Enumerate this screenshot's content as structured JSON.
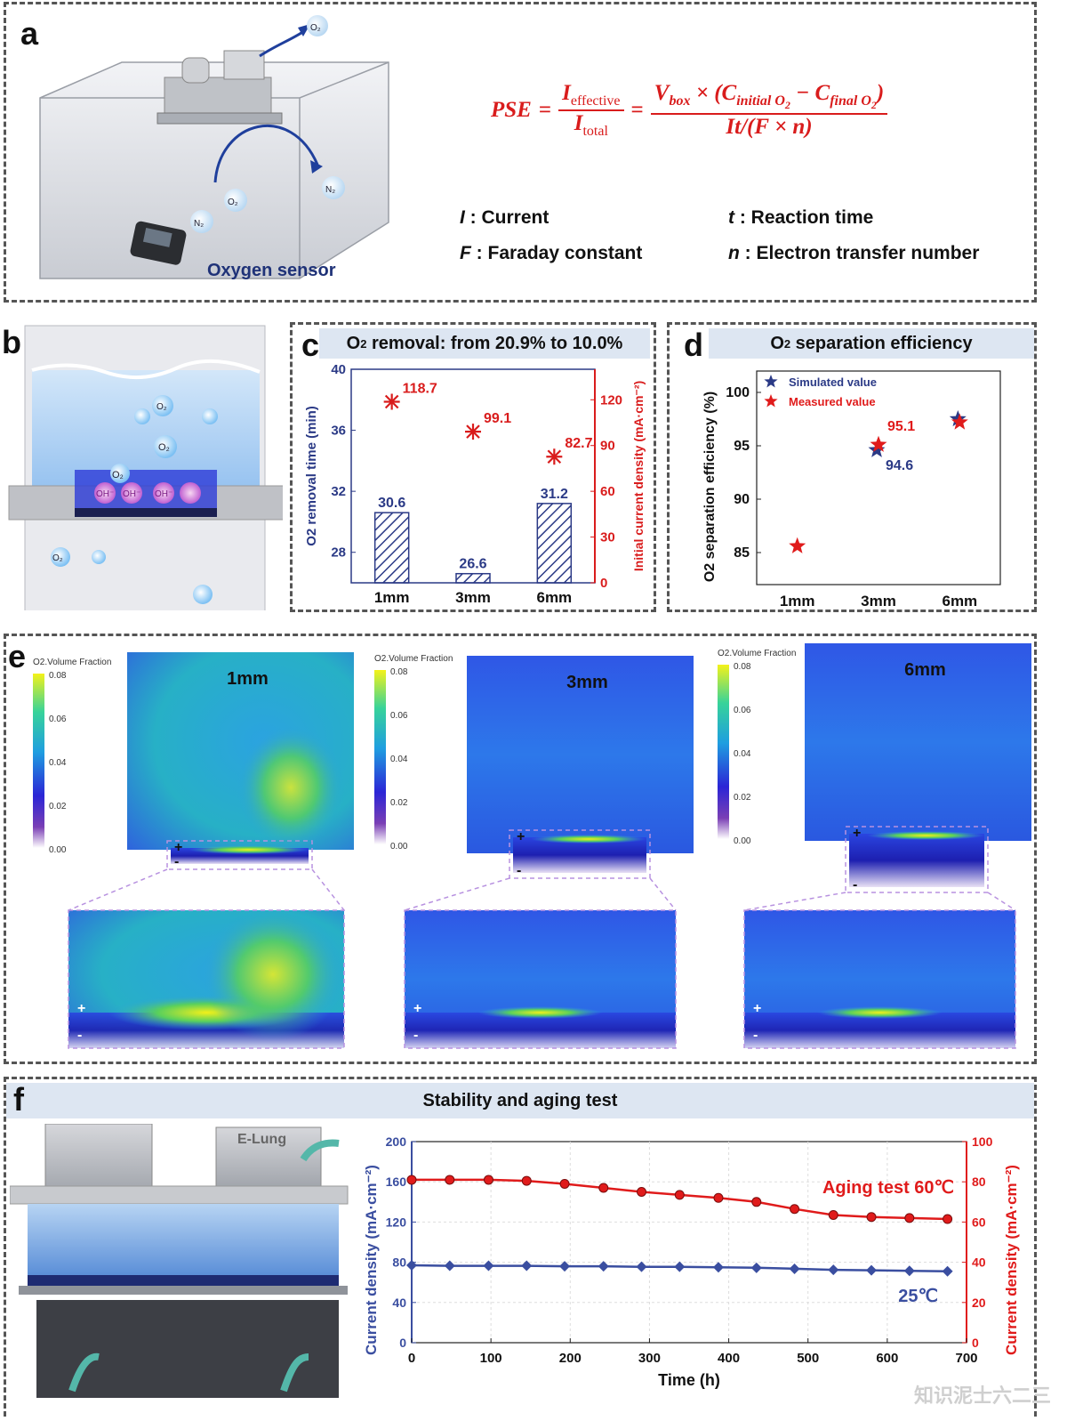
{
  "panels": {
    "a": "a",
    "b": "b",
    "c": "c",
    "d": "d",
    "e": "e",
    "f": "f"
  },
  "panel_a": {
    "sensor_label": "Oxygen sensor",
    "bubble_o2": "O₂",
    "bubble_n2": "N₂",
    "equation_lhs": "PSE",
    "equation_num1": "I",
    "equation_num1_sub": "effective",
    "equation_den1": "I",
    "equation_den1_sub": "total",
    "equation_num2": "V",
    "equation_num2_sub": "box",
    "equation_num2_rest": "× (C",
    "equation_c1_sub": "initial O",
    "equation_mid": " − C",
    "equation_c2_sub": "final O",
    "equation_o2_sub": "2",
    "equation_den2": "It/(F × n)",
    "definitions": [
      {
        "sym": "I",
        "text": " : Current"
      },
      {
        "sym": "t",
        "text": " : Reaction time"
      },
      {
        "sym": "F",
        "text": " : Faraday constant"
      },
      {
        "sym": "n",
        "text": " : Electron transfer number"
      }
    ],
    "color_eq": "#d91c1c"
  },
  "panel_b": {
    "labels": [
      "O₂",
      "O₂",
      "O₂",
      "OH⁻",
      "OH⁻",
      "OH⁻",
      "O₂"
    ]
  },
  "panel_c": {
    "title_pre": "O",
    "title_sub": "2",
    "title_post": " removal: from 20.9% to 10.0%"
  },
  "panel_d": {
    "title_pre": "O",
    "title_sub": "2",
    "title_post": " separation efficiency"
  },
  "panel_e": {
    "sims": [
      {
        "label": "1mm",
        "colorbar_title": "O2.Volume Fraction"
      },
      {
        "label": "3mm",
        "colorbar_title": "O2.Volume Fraction"
      },
      {
        "label": "6mm",
        "colorbar_title": "O2.Volume Fraction"
      }
    ],
    "colorbar_ticks": [
      "0.08",
      "0.06",
      "0.04",
      "0.02",
      "0.00"
    ],
    "plus": "+",
    "minus": "-"
  },
  "panel_f": {
    "title": "Stability and aging test",
    "device_label": "E-Lung"
  },
  "watermark": "知识泥士六二三",
  "chart_data": [
    {
      "type": "bar",
      "title": "O2 removal: from 20.9% to 10.0%",
      "categories": [
        "1mm",
        "3mm",
        "6mm"
      ],
      "xlabel": "",
      "ylabel": "O2 removal time (min)",
      "ylim": [
        26,
        40
      ],
      "yticks": [
        28,
        32,
        36,
        40
      ],
      "series": [
        {
          "values": [
            30.6,
            26.6,
            31.2
          ],
          "axis": "left",
          "color": "#2b3a86"
        },
        {
          "values": [
            118.7,
            99.1,
            82.7
          ],
          "axis": "right",
          "color": "#d91c1c"
        }
      ],
      "y2label": "Initial current density (mA·cm⁻²)",
      "y2lim": [
        0,
        140
      ],
      "y2ticks": [
        0,
        30,
        60,
        90,
        120
      ]
    },
    {
      "type": "scatter",
      "title": "O2 separation efficiency",
      "categories": [
        "1mm",
        "3mm",
        "6mm"
      ],
      "ylabel": "O2 separation efficiency (%)",
      "ylim": [
        82,
        102
      ],
      "yticks": [
        85,
        90,
        95,
        100
      ],
      "legend": "top-left",
      "series": [
        {
          "name": "Simulated value",
          "values": [
            null,
            94.6,
            97.5
          ],
          "color": "#2b3a86",
          "labels": [
            null,
            "94.6",
            null
          ]
        },
        {
          "name": "Measured value",
          "values": [
            85.6,
            95.1,
            97.2
          ],
          "color": "#e01b1b",
          "labels": [
            null,
            "95.1",
            null
          ]
        }
      ]
    },
    {
      "type": "line",
      "title": "Stability and aging test",
      "xlabel": "Time (h)",
      "xlim": [
        0,
        700
      ],
      "xticks": [
        0,
        100,
        200,
        300,
        400,
        500,
        600,
        700
      ],
      "ylabel": "Current density (mA·cm⁻²)",
      "ylim": [
        0,
        200
      ],
      "yticks": [
        0,
        40,
        80,
        120,
        160,
        200
      ],
      "y2label": "Current density (mA·cm⁻²)",
      "y2lim": [
        0,
        100
      ],
      "y2ticks": [
        0,
        20,
        40,
        60,
        80,
        100
      ],
      "series": [
        {
          "name": "Aging test  60℃",
          "axis": "right",
          "color": "#e01b1b",
          "marker": "circle",
          "x": [
            0,
            48,
            97,
            145,
            193,
            242,
            290,
            338,
            387,
            435,
            483,
            532,
            580,
            628,
            676
          ],
          "y": [
            81,
            81,
            81,
            80.5,
            79,
            77,
            75,
            73.5,
            72,
            70,
            66.5,
            63.5,
            62.5,
            62,
            61.5
          ]
        },
        {
          "name": "25℃",
          "axis": "left",
          "color": "#3a4ea0",
          "marker": "diamond",
          "x": [
            0,
            48,
            97,
            145,
            193,
            242,
            290,
            338,
            387,
            435,
            483,
            532,
            580,
            628,
            676
          ],
          "y": [
            77,
            76.5,
            76.5,
            76.5,
            76,
            76,
            75.5,
            75.5,
            75,
            74.5,
            73.5,
            72.5,
            72,
            71.5,
            71
          ]
        }
      ]
    }
  ]
}
